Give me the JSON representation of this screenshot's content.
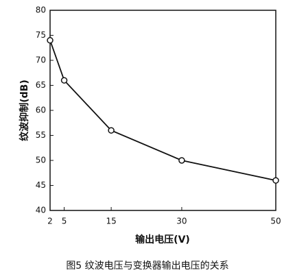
{
  "chart_data": {
    "type": "line",
    "caption": "图5 纹波电压与变换器输出电压的关系",
    "x_label": "输出电压(V)",
    "y_label": "纹波抑制(dB)",
    "x": [
      2,
      5,
      15,
      30,
      50
    ],
    "series": [
      {
        "name": "纹波抑制",
        "color": "#111111",
        "values": [
          74,
          66,
          56,
          50,
          46
        ]
      }
    ],
    "xlim": [
      2,
      50
    ],
    "xticks": [
      2,
      5,
      15,
      30,
      50
    ],
    "ylim": [
      40,
      80
    ],
    "yticks": [
      40,
      45,
      50,
      55,
      60,
      65,
      70,
      75,
      80
    ],
    "grid": false
  }
}
